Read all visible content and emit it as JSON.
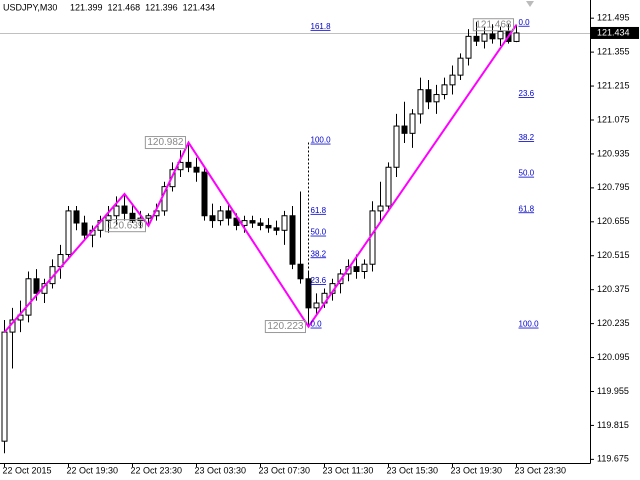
{
  "chart_data": {
    "type": "candlestick",
    "title": "USDJPY,M30",
    "categories": [
      "22 Oct 2015",
      null,
      null,
      null,
      null,
      null,
      null,
      null,
      "22 Oct 19:30",
      null,
      null,
      null,
      null,
      null,
      null,
      null,
      "22 Oct 23:30",
      null,
      null,
      null,
      null,
      null,
      null,
      null,
      "23 Oct 03:30",
      null,
      null,
      null,
      null,
      null,
      null,
      null,
      "23 Oct 07:30",
      null,
      null,
      null,
      null,
      null,
      null,
      null,
      "23 Oct 11:30",
      null,
      null,
      null,
      null,
      null,
      null,
      null,
      "23 Oct 15:30",
      null,
      null,
      null,
      null,
      null,
      null,
      null,
      "23 Oct 19:30",
      null,
      null,
      null,
      null,
      null,
      null,
      null,
      "23 Oct 23:30"
    ],
    "open": [
      119.75,
      120.2,
      120.25,
      120.27,
      120.42,
      120.36,
      120.4,
      120.47,
      120.52,
      120.7,
      120.65,
      120.6,
      120.62,
      120.66,
      120.68,
      120.72,
      120.69,
      120.66,
      120.67,
      120.68,
      120.7,
      120.8,
      120.87,
      120.9,
      120.88,
      120.86,
      120.68,
      120.66,
      120.7,
      120.67,
      120.64,
      120.66,
      120.65,
      120.64,
      120.63,
      120.62,
      120.68,
      120.48,
      120.42,
      120.3,
      120.32,
      120.36,
      120.4,
      120.44,
      120.47,
      120.45,
      120.48,
      120.7,
      120.72,
      120.88,
      121.05,
      121.02,
      121.1,
      121.2,
      121.15,
      121.18,
      121.22,
      121.26,
      121.33,
      121.42,
      121.4,
      121.43,
      121.41,
      121.44,
      121.399
    ],
    "high": [
      120.25,
      120.3,
      120.33,
      120.45,
      120.46,
      120.42,
      120.5,
      120.56,
      120.72,
      120.72,
      120.68,
      120.64,
      120.68,
      120.72,
      120.76,
      120.77,
      120.73,
      120.7,
      120.69,
      120.73,
      120.82,
      120.9,
      120.95,
      120.98,
      120.92,
      120.88,
      120.73,
      120.72,
      120.73,
      120.69,
      120.68,
      120.68,
      120.67,
      120.67,
      120.66,
      120.7,
      120.72,
      120.78,
      120.45,
      120.36,
      120.38,
      120.42,
      120.46,
      120.5,
      120.52,
      120.5,
      120.74,
      120.82,
      120.9,
      121.1,
      121.15,
      121.12,
      121.25,
      121.24,
      121.22,
      121.25,
      121.3,
      121.35,
      121.45,
      121.48,
      121.46,
      121.47,
      121.46,
      121.47,
      121.468
    ],
    "low": [
      119.7,
      120.05,
      120.2,
      120.24,
      120.33,
      120.32,
      120.38,
      120.42,
      120.5,
      120.62,
      120.58,
      120.55,
      120.59,
      120.61,
      120.64,
      120.66,
      120.65,
      120.63,
      120.64,
      120.66,
      120.68,
      120.78,
      120.84,
      120.86,
      120.82,
      120.66,
      120.63,
      120.64,
      120.64,
      120.62,
      120.61,
      120.63,
      120.62,
      120.61,
      120.6,
      120.56,
      120.46,
      120.4,
      120.23,
      120.27,
      120.3,
      120.33,
      120.36,
      120.41,
      120.42,
      120.42,
      120.45,
      120.66,
      120.7,
      120.84,
      120.98,
      120.96,
      121.06,
      121.12,
      121.1,
      121.16,
      121.18,
      121.24,
      121.3,
      121.38,
      121.37,
      121.39,
      121.38,
      121.39,
      121.396
    ],
    "close": [
      120.2,
      120.25,
      120.27,
      120.42,
      120.36,
      120.4,
      120.47,
      120.52,
      120.7,
      120.65,
      120.6,
      120.62,
      120.66,
      120.68,
      120.72,
      120.69,
      120.66,
      120.67,
      120.68,
      120.7,
      120.8,
      120.87,
      120.9,
      120.88,
      120.86,
      120.68,
      120.66,
      120.7,
      120.67,
      120.64,
      120.66,
      120.65,
      120.64,
      120.63,
      120.62,
      120.68,
      120.48,
      120.42,
      120.3,
      120.32,
      120.36,
      120.4,
      120.44,
      120.47,
      120.45,
      120.48,
      120.7,
      120.72,
      120.88,
      121.05,
      121.02,
      121.1,
      121.2,
      121.15,
      121.18,
      121.22,
      121.26,
      121.33,
      121.42,
      121.4,
      121.43,
      121.41,
      121.44,
      121.399,
      121.434
    ],
    "ylim": [
      119.66,
      121.57
    ],
    "yticks": [
      121.495,
      121.355,
      121.215,
      121.075,
      120.935,
      120.795,
      120.655,
      120.515,
      120.375,
      120.235,
      120.095,
      119.955,
      119.815,
      119.675
    ],
    "zigzag": {
      "color": "#ff00ff",
      "x": [
        0,
        15,
        18,
        23,
        38,
        64
      ],
      "values": [
        120.2,
        120.77,
        120.639,
        120.982,
        120.223,
        121.468
      ],
      "value_labels": [
        null,
        null,
        "120.639",
        "120.982",
        "120.223",
        "121.468"
      ]
    },
    "fibo_levels": [
      [
        {
          "value": 161.8,
          "label": "161.8"
        },
        {
          "value": 100,
          "label": "100.0"
        },
        {
          "value": 61.8,
          "label": "61.8"
        },
        {
          "value": 50,
          "label": "50.0"
        },
        {
          "value": 38.2,
          "label": "38.2"
        },
        {
          "value": 23.6,
          "label": "23.6"
        },
        {
          "value": 0,
          "label": "0.0"
        }
      ],
      [
        {
          "value": 0,
          "label": "0.0"
        },
        {
          "value": 23.6,
          "label": "23.6"
        },
        {
          "value": 38.2,
          "label": "38.2"
        },
        {
          "value": 50,
          "label": "50.0"
        },
        {
          "value": 61.8,
          "label": "61.8"
        },
        {
          "value": 100,
          "label": "100.0"
        }
      ]
    ]
  }
}
